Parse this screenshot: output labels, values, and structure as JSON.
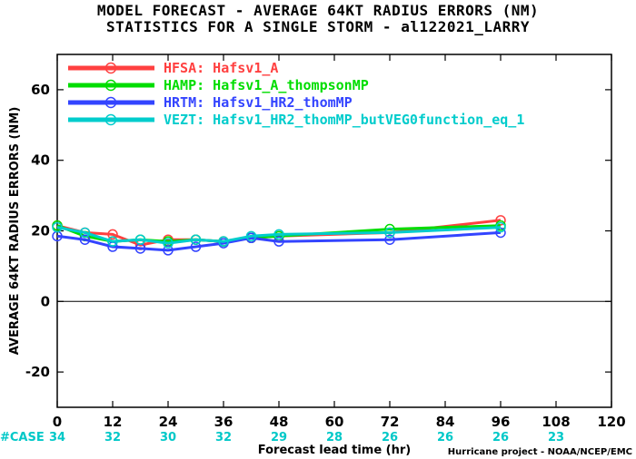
{
  "title_line1": "MODEL FORECAST - AVERAGE 64KT RADIUS ERRORS (NM)",
  "title_line2": "STATISTICS FOR A SINGLE STORM - al122021_LARRY",
  "credit": "Hurricane project - NOAA/NCEP/EMC",
  "case_label": "#CASE",
  "chart_data": {
    "type": "line",
    "xlabel": "Forecast lead time (hr)",
    "ylabel": "AVERAGE 64KT RADIUS ERRORS (NM)",
    "xlim": [
      0,
      120
    ],
    "ylim": [
      -30,
      70
    ],
    "xticks": [
      0,
      12,
      24,
      36,
      48,
      60,
      72,
      84,
      96,
      108,
      120
    ],
    "yticks": [
      -20,
      0,
      20,
      40,
      60
    ],
    "zero_line": true,
    "legend_position": "top-left",
    "case_counts": {
      "x": [
        0,
        12,
        24,
        36,
        48,
        60,
        72,
        84,
        96,
        108
      ],
      "values": [
        "34",
        "32",
        "30",
        "32",
        "29",
        "28",
        "26",
        "26",
        "26",
        "23"
      ]
    },
    "series": [
      {
        "name": "HFSA:",
        "desc": "Hafsv1_A",
        "color": "#ff4040",
        "x": [
          0,
          6,
          12,
          18,
          24,
          30,
          36,
          42,
          48,
          72,
          96
        ],
        "y": [
          21.5,
          19.5,
          19.0,
          16.0,
          17.5,
          17.5,
          17.0,
          18.0,
          18.5,
          19.5,
          23.0
        ]
      },
      {
        "name": "HAMP:",
        "desc": "Hafsv1_A_thompsonMP",
        "color": "#00dd00",
        "x": [
          0,
          6,
          12,
          18,
          24,
          30,
          36,
          42,
          48,
          72,
          96
        ],
        "y": [
          21.5,
          18.5,
          17.0,
          17.5,
          17.0,
          17.5,
          17.0,
          18.0,
          18.5,
          20.5,
          21.5
        ]
      },
      {
        "name": "HRTM:",
        "desc": "Hafsv1_HR2_thomMP",
        "color": "#3344ff",
        "x": [
          0,
          6,
          12,
          18,
          24,
          30,
          36,
          42,
          48,
          72,
          96
        ],
        "y": [
          18.5,
          17.5,
          15.5,
          15.0,
          14.5,
          15.5,
          16.5,
          18.0,
          17.0,
          17.5,
          19.5
        ]
      },
      {
        "name": "VEZT:",
        "desc": "Hafsv1_HR2_thomMP_butVEG0function_eq_1",
        "color": "#00cccc",
        "x": [
          0,
          6,
          12,
          18,
          24,
          30,
          36,
          42,
          48,
          72,
          96
        ],
        "y": [
          21.0,
          19.5,
          17.0,
          17.5,
          16.5,
          17.5,
          17.0,
          18.5,
          19.0,
          19.5,
          21.0
        ]
      }
    ]
  }
}
